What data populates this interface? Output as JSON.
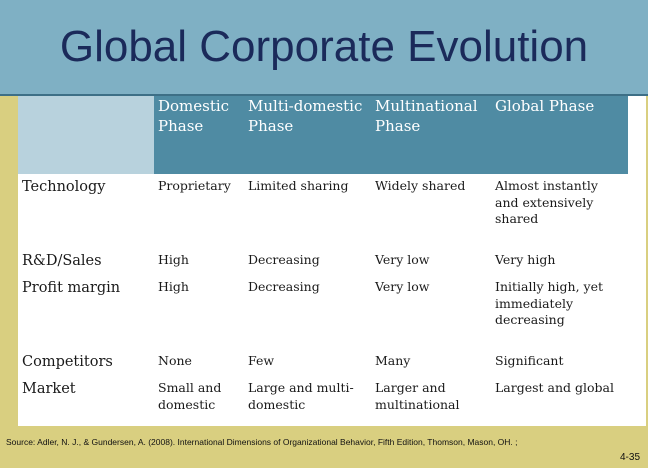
{
  "slide": {
    "title": "Global Corporate Evolution",
    "source": "Source: Adler, N. J., & Gundersen, A. (2008). International Dimensions of Organizational Behavior, Fifth Edition, Thomson, Mason, OH. ;",
    "page_number": "4-35"
  },
  "table": {
    "headers": [
      "",
      "Domestic Phase",
      "Multi-domestic Phase",
      "Multinational Phase",
      "Global Phase"
    ],
    "rows": [
      [
        "Technology",
        "Proprietary",
        "Limited sharing",
        "Widely shared",
        "Almost instantly and extensively shared"
      ],
      [
        "R&D/Sales",
        "High",
        "Decreasing",
        "Very low",
        "Very high"
      ],
      [
        "Profit margin",
        "High",
        "Decreasing",
        "Very low",
        "Initially high, yet immediately decreasing"
      ],
      [
        "Competitors",
        "None",
        "Few",
        "Many",
        "Significant"
      ],
      [
        "Market",
        "Small and domestic",
        "Large and multi-domestic",
        "Larger and multinational",
        "Largest and global"
      ]
    ]
  },
  "colors": {
    "title_bar": "#7fb0c4",
    "header_fill": "#4f8ba3",
    "background": "#d9cf80",
    "title_text": "#1b2a5a"
  }
}
